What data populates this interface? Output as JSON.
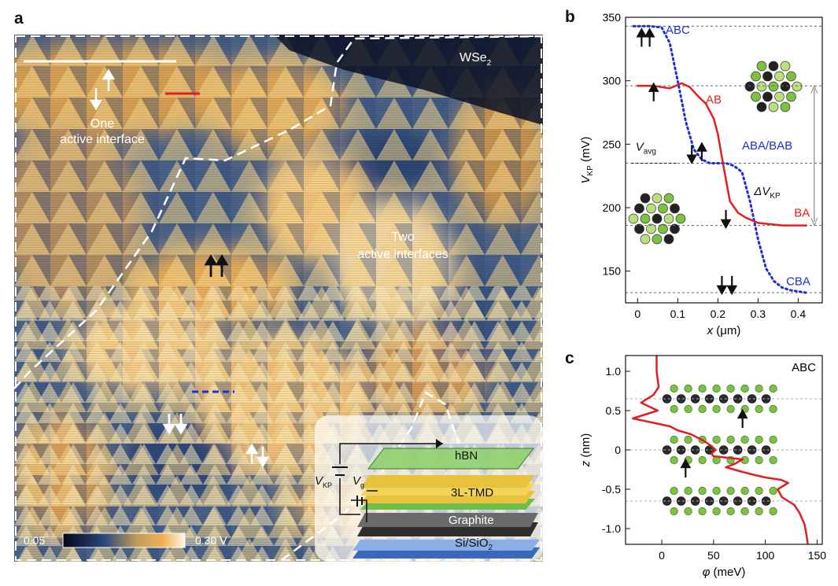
{
  "panels": {
    "a": {
      "letter": "a",
      "wse2": "WSe",
      "wse2_sub": "2",
      "one_line1": "One",
      "one_line2": "active interface",
      "two_line1": "Two",
      "two_line2": "active interfaces",
      "scale_min": "0.05",
      "scale_max": "0.30 V",
      "stack": {
        "hbn": "hBN",
        "tmd": "3L-TMD",
        "graphite": "Graphite",
        "si": "Si/SiO",
        "si_sub": "2",
        "vkp": "V",
        "vkp_sub": "KP",
        "vg": "V",
        "vg_sub": "g"
      }
    },
    "b": {
      "letter": "b"
    },
    "c": {
      "letter": "c"
    }
  },
  "chart_data": [
    {
      "panel": "b",
      "type": "line",
      "xlabel": "x (μm)",
      "ylabel": "V_KP (mV)",
      "xlim": [
        -0.03,
        0.46
      ],
      "ylim": [
        125,
        350
      ],
      "xticks": [
        0,
        0.1,
        0.2,
        0.3,
        0.4
      ],
      "yticks": [
        150,
        200,
        250,
        300,
        350
      ],
      "reference_lines": [
        343,
        296,
        235,
        186,
        133
      ],
      "series": [
        {
          "name": "ABC→CBA profile",
          "color": "#1f2fd6",
          "style": "dotted",
          "x": [
            -0.01,
            0.0,
            0.03,
            0.06,
            0.08,
            0.1,
            0.12,
            0.14,
            0.16,
            0.18,
            0.2,
            0.22,
            0.24,
            0.26,
            0.28,
            0.3,
            0.32,
            0.34,
            0.36,
            0.38,
            0.4,
            0.42
          ],
          "y": [
            343,
            343,
            343,
            342,
            330,
            300,
            268,
            246,
            238,
            235,
            235,
            235,
            233,
            228,
            205,
            175,
            152,
            142,
            137,
            135,
            134,
            133
          ]
        },
        {
          "name": "AB→BA profile",
          "color": "#e02020",
          "style": "solid",
          "x": [
            0.0,
            0.04,
            0.08,
            0.11,
            0.13,
            0.15,
            0.17,
            0.19,
            0.2,
            0.21,
            0.22,
            0.23,
            0.25,
            0.27,
            0.3,
            0.33,
            0.36,
            0.39,
            0.42
          ],
          "y": [
            296,
            296,
            294,
            298,
            295,
            288,
            282,
            270,
            258,
            240,
            222,
            205,
            196,
            192,
            188,
            187,
            186,
            186,
            186
          ]
        }
      ],
      "annotations": [
        {
          "text": "ABC",
          "color": "#1f2fd6"
        },
        {
          "text": "AB",
          "color": "#e02020"
        },
        {
          "text": "ABA/BAB",
          "color": "#1f2fd6"
        },
        {
          "text": "BA",
          "color": "#e02020"
        },
        {
          "text": "CBA",
          "color": "#1f2fd6"
        },
        {
          "text": "V_avg",
          "color": "#111111"
        },
        {
          "text": "ΔV_KP",
          "color": "#111111"
        }
      ]
    },
    {
      "panel": "c",
      "type": "line",
      "title": "ABC",
      "xlabel": "φ (meV)",
      "ylabel": "z (nm)",
      "xlim": [
        -35,
        155
      ],
      "ylim": [
        -1.2,
        1.2
      ],
      "xticks": [
        0,
        50,
        100,
        150
      ],
      "yticks": [
        -1.0,
        -0.5,
        0,
        0.5,
        1.0
      ],
      "reference_lines": [
        0.65,
        0,
        -0.65
      ],
      "series": [
        {
          "name": "φ(z)",
          "color": "#e02020",
          "phi": [
            -5,
            -5,
            -4,
            -3,
            -8,
            -20,
            -12,
            -4,
            -28,
            8,
            15,
            28,
            40,
            48,
            52,
            48,
            50,
            78,
            70,
            62,
            78,
            90,
            100,
            115,
            122,
            112,
            116,
            122,
            128,
            133,
            138,
            140,
            141
          ],
          "z": [
            1.2,
            1.0,
            0.9,
            0.8,
            0.7,
            0.6,
            0.55,
            0.5,
            0.4,
            0.3,
            0.25,
            0.2,
            0.12,
            0.05,
            0.0,
            -0.05,
            -0.08,
            -0.12,
            -0.18,
            -0.22,
            -0.28,
            -0.32,
            -0.35,
            -0.38,
            -0.42,
            -0.5,
            -0.6,
            -0.65,
            -0.7,
            -0.8,
            -0.95,
            -1.1,
            -1.2
          ]
        }
      ]
    }
  ]
}
